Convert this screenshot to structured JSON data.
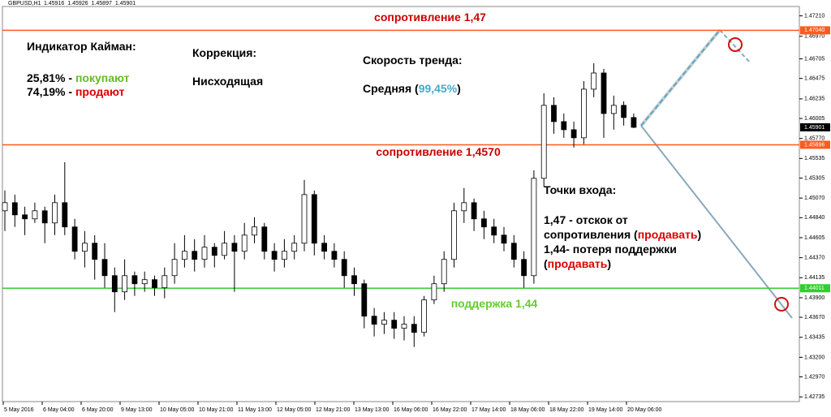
{
  "chart_data": {
    "type": "candlestick",
    "symbol": "GBPUSD,H1",
    "ohlc": [
      1.45916,
      1.45926,
      1.45897,
      1.45901
    ],
    "ylim": [
      1.4268,
      1.4732
    ],
    "yticks": [
      {
        "value": 1.4721,
        "label": "1.47210"
      },
      {
        "value": 1.4697,
        "label": "1.46970"
      },
      {
        "value": 1.46705,
        "label": "1.46705"
      },
      {
        "value": 1.46475,
        "label": "1.46475"
      },
      {
        "value": 1.46235,
        "label": "1.46235"
      },
      {
        "value": 1.46005,
        "label": "1.46005"
      },
      {
        "value": 1.4577,
        "label": "1.45770"
      },
      {
        "value": 1.45535,
        "label": "1.45535"
      },
      {
        "value": 1.45305,
        "label": "1.45305"
      },
      {
        "value": 1.4507,
        "label": "1.45070"
      },
      {
        "value": 1.4484,
        "label": "1.44840"
      },
      {
        "value": 1.44605,
        "label": "1.44605"
      },
      {
        "value": 1.4437,
        "label": "1.44370"
      },
      {
        "value": 1.44135,
        "label": "1.44135"
      },
      {
        "value": 1.439,
        "label": "1.43900"
      },
      {
        "value": 1.4367,
        "label": "1.43670"
      },
      {
        "value": 1.43435,
        "label": "1.43435"
      },
      {
        "value": 1.432,
        "label": "1.43200"
      },
      {
        "value": 1.4297,
        "label": "1.42970"
      },
      {
        "value": 1.42735,
        "label": "1.42735"
      }
    ],
    "x_labels": [
      "5 May 2016",
      "6 May 04:00",
      "6 May 20:00",
      "9 May 13:00",
      "10 May 05:00",
      "10 May 21:00",
      "11 May 13:00",
      "12 May 05:00",
      "12 May 21:00",
      "13 May 13:00",
      "16 May 06:00",
      "16 May 22:00",
      "17 May 14:00",
      "18 May 06:00",
      "18 May 22:00",
      "19 May 14:00",
      "20 May 06:00"
    ],
    "candles": [
      [
        1.44921,
        1.45159,
        1.44683,
        1.45016
      ],
      [
        1.45016,
        1.45111,
        1.44731,
        1.44873
      ],
      [
        1.44873,
        1.44969,
        1.44635,
        1.44826
      ],
      [
        1.44826,
        1.45016,
        1.44778,
        1.44921
      ],
      [
        1.44921,
        1.44969,
        1.4454,
        1.44778
      ],
      [
        1.44778,
        1.45111,
        1.44635,
        1.45016
      ],
      [
        1.45016,
        1.45492,
        1.44635,
        1.44731
      ],
      [
        1.44731,
        1.44826,
        1.4435,
        1.44445
      ],
      [
        1.44445,
        1.44683,
        1.44255,
        1.4454
      ],
      [
        1.4454,
        1.44635,
        1.44112,
        1.4435
      ],
      [
        1.4435,
        1.4454,
        1.44017,
        1.44159
      ],
      [
        1.44159,
        1.44255,
        1.43731,
        1.43969
      ],
      [
        1.43969,
        1.4435,
        1.43874,
        1.44159
      ],
      [
        1.44159,
        1.44207,
        1.43921,
        1.44064
      ],
      [
        1.44064,
        1.44207,
        1.43969,
        1.44112
      ],
      [
        1.44112,
        1.44159,
        1.43921,
        1.44017
      ],
      [
        1.44017,
        1.44255,
        1.43893,
        1.44159
      ],
      [
        1.44159,
        1.4454,
        1.44064,
        1.4435
      ],
      [
        1.4435,
        1.44635,
        1.44255,
        1.44445
      ],
      [
        1.44445,
        1.44588,
        1.44207,
        1.4435
      ],
      [
        1.4435,
        1.44635,
        1.44255,
        1.44493
      ],
      [
        1.44493,
        1.4454,
        1.44255,
        1.44397
      ],
      [
        1.44397,
        1.44683,
        1.4435,
        1.4454
      ],
      [
        1.4454,
        1.44635,
        1.43969,
        1.44445
      ],
      [
        1.44445,
        1.44778,
        1.4435,
        1.44635
      ],
      [
        1.44635,
        1.44845,
        1.4454,
        1.44731
      ],
      [
        1.44731,
        1.44778,
        1.4435,
        1.44445
      ],
      [
        1.44445,
        1.4454,
        1.44207,
        1.4435
      ],
      [
        1.4435,
        1.44588,
        1.44255,
        1.44445
      ],
      [
        1.44445,
        1.44635,
        1.4435,
        1.4454
      ],
      [
        1.4454,
        1.45283,
        1.44445,
        1.45111
      ],
      [
        1.45111,
        1.45159,
        1.44397,
        1.4454
      ],
      [
        1.4454,
        1.44635,
        1.4435,
        1.44445
      ],
      [
        1.44445,
        1.4454,
        1.44255,
        1.4435
      ],
      [
        1.4435,
        1.44445,
        1.44017,
        1.44159
      ],
      [
        1.44159,
        1.44255,
        1.43921,
        1.44064
      ],
      [
        1.44064,
        1.44112,
        1.43541,
        1.43683
      ],
      [
        1.43683,
        1.43779,
        1.43445,
        1.43588
      ],
      [
        1.43588,
        1.43731,
        1.43474,
        1.43636
      ],
      [
        1.43636,
        1.43731,
        1.43417,
        1.43541
      ],
      [
        1.43541,
        1.43683,
        1.43398,
        1.43588
      ],
      [
        1.43588,
        1.43683,
        1.43322,
        1.43493
      ],
      [
        1.43493,
        1.43921,
        1.43445,
        1.43874
      ],
      [
        1.43874,
        1.44159,
        1.43826,
        1.44064
      ],
      [
        1.44064,
        1.44445,
        1.43969,
        1.4435
      ],
      [
        1.4435,
        1.45016,
        1.44255,
        1.44921
      ],
      [
        1.44921,
        1.45188,
        1.44778,
        1.45016
      ],
      [
        1.45016,
        1.45064,
        1.44683,
        1.44826
      ],
      [
        1.44826,
        1.44921,
        1.44588,
        1.44731
      ],
      [
        1.44731,
        1.44826,
        1.4454,
        1.44635
      ],
      [
        1.44635,
        1.44731,
        1.44445,
        1.4454
      ],
      [
        1.4454,
        1.44635,
        1.44255,
        1.4435
      ],
      [
        1.4435,
        1.44445,
        1.44017,
        1.44159
      ],
      [
        1.44159,
        1.45397,
        1.44064,
        1.45302
      ],
      [
        1.45302,
        1.46301,
        1.45207,
        1.46159
      ],
      [
        1.46159,
        1.46254,
        1.45825,
        1.45968
      ],
      [
        1.45968,
        1.46063,
        1.45778,
        1.45873
      ],
      [
        1.45873,
        1.45968,
        1.45664,
        1.45778
      ],
      [
        1.45778,
        1.46444,
        1.45702,
        1.46349
      ],
      [
        1.46349,
        1.46654,
        1.46254,
        1.46539
      ],
      [
        1.46539,
        1.46587,
        1.45778,
        1.46063
      ],
      [
        1.46063,
        1.46273,
        1.45873,
        1.46159
      ],
      [
        1.46159,
        1.46206,
        1.45921,
        1.46016
      ],
      [
        1.46016,
        1.46063,
        1.45892,
        1.45901
      ]
    ],
    "levels": [
      {
        "value": 1.4704,
        "label": "1.47040",
        "color": "#ff5a1e"
      },
      {
        "value": 1.45696,
        "label": "1.45696",
        "color": "#ff5a1e"
      },
      {
        "value": 1.44011,
        "label": "1.44011",
        "color": "#33cc33"
      }
    ],
    "current_price": {
      "value": 1.45901,
      "label": "1.45901",
      "color": "#000000"
    },
    "annotations": [
      [
        {
          "text": "сопротивление 1,47",
          "color": "#cc0000"
        }
      ],
      [
        {
          "text": "Индикатор Кайман:",
          "color": "#000000"
        }
      ],
      [
        {
          "text": "25,81% - ",
          "color": "#000000"
        },
        {
          "text": "покупают",
          "color": "#66bb22"
        }
      ],
      [
        {
          "text": "74,19% - ",
          "color": "#000000"
        },
        {
          "text": "продают",
          "color": "#dd0000"
        }
      ],
      [
        {
          "text": "Коррекция:",
          "color": "#000000"
        }
      ],
      [
        {
          "text": "Нисходящая",
          "color": "#000000"
        }
      ],
      [
        {
          "text": "Скорость тренда:",
          "color": "#000000"
        }
      ],
      [
        {
          "text": "Средняя (",
          "color": "#000000"
        },
        {
          "text": "99,45%",
          "color": "#44aacc"
        },
        {
          "text": ")",
          "color": "#000000"
        }
      ],
      [
        {
          "text": "сопротивление 1,4570",
          "color": "#cc0000"
        }
      ],
      [
        {
          "text": "Точки входа:",
          "color": "#000000"
        }
      ],
      [
        {
          "text": "1,47 - отскок от",
          "color": "#000000"
        }
      ],
      [
        {
          "text": "сопротивления (",
          "color": "#000000"
        },
        {
          "text": "продавать",
          "color": "#dd0000"
        },
        {
          "text": ")",
          "color": "#000000"
        }
      ],
      [
        {
          "text": "1,44- потеря поддержки",
          "color": "#000000"
        }
      ],
      [
        {
          "text": "(",
          "color": "#000000"
        },
        {
          "text": "продавать",
          "color": "#dd0000"
        },
        {
          "text": ")",
          "color": "#000000"
        }
      ],
      [
        {
          "text": "поддержка 1,44",
          "color": "#66cc33"
        }
      ]
    ]
  }
}
